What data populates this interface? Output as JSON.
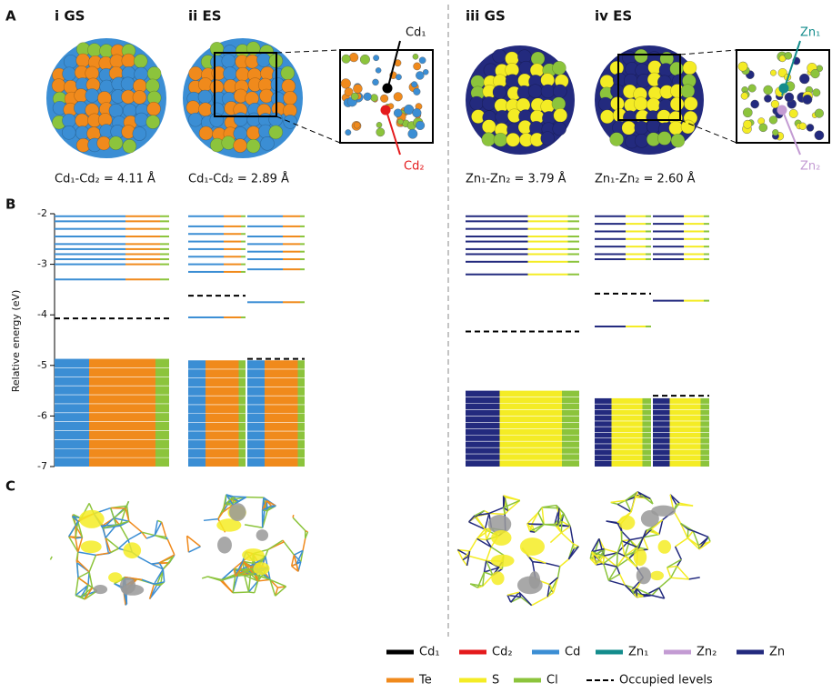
{
  "panel_labels": [
    "A",
    "B",
    "C"
  ],
  "columns": [
    {
      "label": "i GS",
      "distance": "Cd₁-Cd₂ = 4.11 Å"
    },
    {
      "label": "ii ES",
      "distance": "Cd₁-Cd₂ = 2.89 Å"
    },
    {
      "label": "iii GS",
      "distance": "Zn₁-Zn₂ = 3.79 Å"
    },
    {
      "label": "iv ES",
      "distance": "Zn₁-Zn₂ = 2.60 Å"
    }
  ],
  "inset_labels": [
    "Cd₁",
    "Cd₂",
    "Zn₁",
    "Zn₂"
  ],
  "energy_diagram": {
    "y_label": "Relative energy (eV)",
    "ylim": [
      -2,
      -7
    ],
    "yticks": [
      -2,
      -3,
      -4,
      -5,
      -6,
      -7
    ],
    "columns": [
      {
        "channels": [
          {
            "levels": [
              -2.05,
              -2.15,
              -2.3,
              -2.45,
              -2.6,
              -2.7,
              -2.8,
              -2.9,
              -3.0,
              -3.3
            ],
            "occupied": -4.07,
            "valence_top": -4.87
          }
        ]
      },
      {
        "channels": [
          {
            "levels": [
              -2.05,
              -2.25,
              -2.4,
              -2.55,
              -2.7,
              -2.85,
              -3.0,
              -3.15,
              -4.05
            ],
            "occupied": -3.62,
            "valence_top": -4.9
          },
          {
            "levels": [
              -2.05,
              -2.25,
              -2.45,
              -2.6,
              -2.75,
              -2.9,
              -3.1,
              -3.75
            ],
            "occupied": -4.87,
            "valence_top": -4.9
          }
        ]
      },
      {
        "channels": [
          {
            "levels": [
              -2.05,
              -2.15,
              -2.3,
              -2.45,
              -2.55,
              -2.7,
              -2.8,
              -2.95,
              -3.2
            ],
            "occupied": -4.33,
            "valence_top": -5.5
          }
        ]
      },
      {
        "channels": [
          {
            "levels": [
              -2.05,
              -2.2,
              -2.35,
              -2.5,
              -2.65,
              -2.8,
              -2.9,
              -4.23
            ],
            "occupied": -3.58,
            "valence_top": -5.65
          },
          {
            "levels": [
              -2.05,
              -2.2,
              -2.35,
              -2.5,
              -2.65,
              -2.8,
              -2.9,
              -3.72
            ],
            "occupied": -5.6,
            "valence_top": -5.65
          }
        ]
      }
    ]
  },
  "legend": [
    {
      "name": "Cd₁",
      "color": "#000000"
    },
    {
      "name": "Cd₂",
      "color": "#e41a1c"
    },
    {
      "name": "Cd",
      "color": "#3b8ed4"
    },
    {
      "name": "Zn₁",
      "color": "#138c8c"
    },
    {
      "name": "Zn₂",
      "color": "#c39bd3"
    },
    {
      "name": "Zn",
      "color": "#232a7e"
    },
    {
      "name": "Te",
      "color": "#f08a1c"
    },
    {
      "name": "S",
      "color": "#f4ec25"
    },
    {
      "name": "Cl",
      "color": "#8cc43c"
    },
    {
      "name": "Occupied levels",
      "style": "dashed"
    }
  ]
}
